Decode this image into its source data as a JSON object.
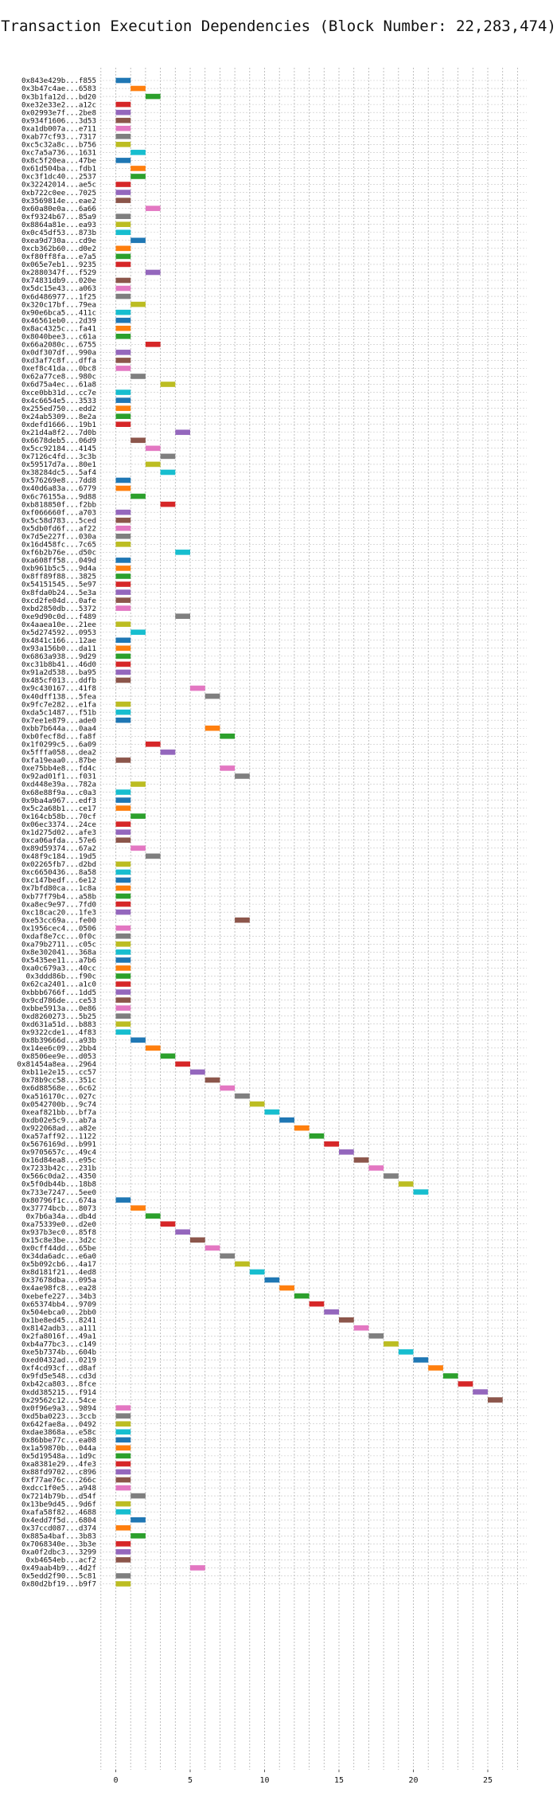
{
  "chart_data": {
    "type": "gantt",
    "title": "Transaction Execution Dependencies (Block Number: 22,283,474)",
    "xlabel": "",
    "ylabel": "",
    "xlim": [
      -1,
      27
    ],
    "xticks": [
      0,
      5,
      10,
      15,
      20,
      25
    ],
    "grid": true,
    "bar_duration": 1,
    "palette": [
      "#1f77b4",
      "#ff7f0e",
      "#2ca02c",
      "#d62728",
      "#9467bd",
      "#8c564b",
      "#e377c2",
      "#7f7f7f",
      "#bcbd22",
      "#17becf"
    ],
    "transactions": [
      {
        "label": "0x843e429b...f855",
        "start": 0
      },
      {
        "label": "0x3b47c4ae...6583",
        "start": 1
      },
      {
        "label": "0x3b1fa12d...bd20",
        "start": 2
      },
      {
        "label": "0xe32e33e2...a12c",
        "start": 0
      },
      {
        "label": "0x02993e7f...2be8",
        "start": 0
      },
      {
        "label": "0x934f1606...3d53",
        "start": 0
      },
      {
        "label": "0xa1db007a...e711",
        "start": 0
      },
      {
        "label": "0xab77cf93...7317",
        "start": 0
      },
      {
        "label": "0xc5c32a8c...b756",
        "start": 0
      },
      {
        "label": "0xc7a5a736...1631",
        "start": 1
      },
      {
        "label": "0x8c5f20ea...47be",
        "start": 0
      },
      {
        "label": "0x61d504ba...fdb1",
        "start": 1
      },
      {
        "label": "0xc3f1dc40...2537",
        "start": 1
      },
      {
        "label": "0x32242014...ae5c",
        "start": 0
      },
      {
        "label": "0xb722c0ee...7025",
        "start": 0
      },
      {
        "label": "0x3569814e...eae2",
        "start": 0
      },
      {
        "label": "0x60a80e0a...6a66",
        "start": 2
      },
      {
        "label": "0xf9324b67...85a9",
        "start": 0
      },
      {
        "label": "0x8864a81e...ea93",
        "start": 0
      },
      {
        "label": "0x0c45df53...873b",
        "start": 0
      },
      {
        "label": "0xea9d730a...cd9e",
        "start": 1
      },
      {
        "label": "0xcb362b60...d0e2",
        "start": 0
      },
      {
        "label": "0xf80ff8fa...e7a5",
        "start": 0
      },
      {
        "label": "0x065e7eb1...9235",
        "start": 0
      },
      {
        "label": "0x2880347f...f529",
        "start": 2
      },
      {
        "label": "0x74831db9...020e",
        "start": 0
      },
      {
        "label": "0x5dc15e43...a063",
        "start": 0
      },
      {
        "label": "0x6d486977...1f25",
        "start": 0
      },
      {
        "label": "0x320c17bf...79ea",
        "start": 1
      },
      {
        "label": "0x90e6bca5...411c",
        "start": 0
      },
      {
        "label": "0x46561eb0...2d39",
        "start": 0
      },
      {
        "label": "0x8ac4325c...fa41",
        "start": 0
      },
      {
        "label": "0x8040bee3...c61a",
        "start": 0
      },
      {
        "label": "0x66a2080c...6755",
        "start": 2
      },
      {
        "label": "0x0df307df...990a",
        "start": 0
      },
      {
        "label": "0xd3af7c8f...dffa",
        "start": 0
      },
      {
        "label": "0xef8c41da...0bc8",
        "start": 0
      },
      {
        "label": "0x62a77ce8...980c",
        "start": 1
      },
      {
        "label": "0x6d75a4ec...61a8",
        "start": 3
      },
      {
        "label": "0xce0bb31d...cc7e",
        "start": 0
      },
      {
        "label": "0x4c6654e5...3533",
        "start": 0
      },
      {
        "label": "0x255ed750...edd2",
        "start": 0
      },
      {
        "label": "0x24ab5309...8e2a",
        "start": 0
      },
      {
        "label": "0xdefd1666...19b1",
        "start": 0
      },
      {
        "label": "0x21d4a8f2...7d0b",
        "start": 4
      },
      {
        "label": "0x6678deb5...06d9",
        "start": 1
      },
      {
        "label": "0x5cc92184...4145",
        "start": 2
      },
      {
        "label": "0x7126c4fd...3c3b",
        "start": 3
      },
      {
        "label": "0x59517d7a...80e1",
        "start": 2
      },
      {
        "label": "0x38284dc5...5af4",
        "start": 3
      },
      {
        "label": "0x576269e8...7dd8",
        "start": 0
      },
      {
        "label": "0x40d6a83a...6779",
        "start": 0
      },
      {
        "label": "0x6c76155a...9d88",
        "start": 1
      },
      {
        "label": "0xb818850f...f2bb",
        "start": 3
      },
      {
        "label": "0xf066660f...a703",
        "start": 0
      },
      {
        "label": "0x5c58d783...5ced",
        "start": 0
      },
      {
        "label": "0x5db0fd6f...af22",
        "start": 0
      },
      {
        "label": "0x7d5e227f...030a",
        "start": 0
      },
      {
        "label": "0x16d458fc...7c65",
        "start": 0
      },
      {
        "label": "0xf6b2b76e...d50c",
        "start": 4
      },
      {
        "label": "0xa608ff58...049d",
        "start": 0
      },
      {
        "label": "0xb961b5c5...9d4a",
        "start": 0
      },
      {
        "label": "0x8ff89f88...3825",
        "start": 0
      },
      {
        "label": "0x54151545...5e97",
        "start": 0
      },
      {
        "label": "0x8fda0b24...5e3a",
        "start": 0
      },
      {
        "label": "0xcd2fe04d...0afe",
        "start": 0
      },
      {
        "label": "0xbd2850db...5372",
        "start": 0
      },
      {
        "label": "0xe9d90c0d...f489",
        "start": 4
      },
      {
        "label": "0x4aaea10e...21ee",
        "start": 0
      },
      {
        "label": "0x5d274592...0953",
        "start": 1
      },
      {
        "label": "0x4841c166...12ae",
        "start": 0
      },
      {
        "label": "0x93a156b0...da11",
        "start": 0
      },
      {
        "label": "0x6863a938...9d29",
        "start": 0
      },
      {
        "label": "0xc31b8b41...46d0",
        "start": 0
      },
      {
        "label": "0x91a2d538...ba95",
        "start": 0
      },
      {
        "label": "0x485cf013...ddfb",
        "start": 0
      },
      {
        "label": "0x9c430167...41f8",
        "start": 5
      },
      {
        "label": "0x40dff138...5fea",
        "start": 6
      },
      {
        "label": "0x9fc7e282...e1fa",
        "start": 0
      },
      {
        "label": "0xda5c1487...f51b",
        "start": 0
      },
      {
        "label": "0x7ee1e879...ade0",
        "start": 0
      },
      {
        "label": "0xbb7b644a...0aa4",
        "start": 6
      },
      {
        "label": "0xb0fecf8d...fa8f",
        "start": 7
      },
      {
        "label": "0x1f0299c5...6a09",
        "start": 2
      },
      {
        "label": "0x5fffa058...dea2",
        "start": 3
      },
      {
        "label": "0xfa19eaa0...87be",
        "start": 0
      },
      {
        "label": "0xe75bb4e8...fd4c",
        "start": 7
      },
      {
        "label": "0x92ad01f1...f031",
        "start": 8
      },
      {
        "label": "0xd448e39a...782a",
        "start": 1
      },
      {
        "label": "0x68e88f9a...c0a3",
        "start": 0
      },
      {
        "label": "0x9ba4a967...edf3",
        "start": 0
      },
      {
        "label": "0x5c2a68b1...ce17",
        "start": 0
      },
      {
        "label": "0x164cb58b...70cf",
        "start": 1
      },
      {
        "label": "0x06ec3374...24ce",
        "start": 0
      },
      {
        "label": "0x1d275d02...afe3",
        "start": 0
      },
      {
        "label": "0xca06afda...57e6",
        "start": 0
      },
      {
        "label": "0x89d59374...67a2",
        "start": 1
      },
      {
        "label": "0x48f9c184...19d5",
        "start": 2
      },
      {
        "label": "0x02265fb7...d2bd",
        "start": 0
      },
      {
        "label": "0xc6650436...8a58",
        "start": 0
      },
      {
        "label": "0xc147bedf...6e12",
        "start": 0
      },
      {
        "label": "0x7bfd80ca...1c8a",
        "start": 0
      },
      {
        "label": "0xb77f79b4...a58b",
        "start": 0
      },
      {
        "label": "0xa8ec9e97...7fd0",
        "start": 0
      },
      {
        "label": "0xc18cac20...1fe3",
        "start": 0
      },
      {
        "label": "0xe53cc69a...fe00",
        "start": 8
      },
      {
        "label": "0x1956cec4...0506",
        "start": 0
      },
      {
        "label": "0xdaf8e7cc...0f0c",
        "start": 0
      },
      {
        "label": "0xa79b2711...c05c",
        "start": 0
      },
      {
        "label": "0x8e302041...368a",
        "start": 0
      },
      {
        "label": "0x5435ee11...a7b6",
        "start": 0
      },
      {
        "label": "0xa0c679a3...40cc",
        "start": 0
      },
      {
        "label": "0x3ddd86b...f90c",
        "start": 0
      },
      {
        "label": "0x62ca2401...a1c0",
        "start": 0
      },
      {
        "label": "0xbbb6766f...1dd5",
        "start": 0
      },
      {
        "label": "0x9cd786de...ce53",
        "start": 0
      },
      {
        "label": "0xbbe5913a...0e86",
        "start": 0
      },
      {
        "label": "0xd8260273...5b25",
        "start": 0
      },
      {
        "label": "0xd631a51d...b883",
        "start": 0
      },
      {
        "label": "0x9322cde1...4f83",
        "start": 0
      },
      {
        "label": "0x8b39666d...a93b",
        "start": 1
      },
      {
        "label": "0x14ee6c09...2bb4",
        "start": 2
      },
      {
        "label": "0x8506ee9e...d053",
        "start": 3
      },
      {
        "label": "0x81454a8ea...2964",
        "start": 4
      },
      {
        "label": "0xb11e2e15...cc57",
        "start": 5
      },
      {
        "label": "0x78b9cc58...351c",
        "start": 6
      },
      {
        "label": "0x6d88568e...6c62",
        "start": 7
      },
      {
        "label": "0xa516170c...027c",
        "start": 8
      },
      {
        "label": "0x0542700b...9c74",
        "start": 9
      },
      {
        "label": "0xeaf821bb...bf7a",
        "start": 10
      },
      {
        "label": "0xdb02e5c9...ab7a",
        "start": 11
      },
      {
        "label": "0x922068ad...a82e",
        "start": 12
      },
      {
        "label": "0xa57aff92...1122",
        "start": 13
      },
      {
        "label": "0x5676169d...b991",
        "start": 14
      },
      {
        "label": "0x9705657c...49c4",
        "start": 15
      },
      {
        "label": "0x16d84ea8...e95c",
        "start": 16
      },
      {
        "label": "0x7233b42c...231b",
        "start": 17
      },
      {
        "label": "0x566c0da2...4350",
        "start": 18
      },
      {
        "label": "0x5f0db44b...18b8",
        "start": 19
      },
      {
        "label": "0x733e7247...5ee0",
        "start": 20
      },
      {
        "label": "0x80796f1c...674a",
        "start": 0
      },
      {
        "label": "0x37774bcb...8073",
        "start": 1
      },
      {
        "label": "0x7b6a34a...db4d",
        "start": 2
      },
      {
        "label": "0xa75339e0...d2e0",
        "start": 3
      },
      {
        "label": "0x937b3ec0...85f8",
        "start": 4
      },
      {
        "label": "0x15c8e3be...3d2c",
        "start": 5
      },
      {
        "label": "0x0cff44dd...65be",
        "start": 6
      },
      {
        "label": "0x34da6adc...e6a0",
        "start": 7
      },
      {
        "label": "0x5b092cb6...4a17",
        "start": 8
      },
      {
        "label": "0x8d181f21...4ed8",
        "start": 9
      },
      {
        "label": "0x37678dba...095a",
        "start": 10
      },
      {
        "label": "0x4ae98fc8...ea28",
        "start": 11
      },
      {
        "label": "0xebefe227...34b3",
        "start": 12
      },
      {
        "label": "0x65374bb4...9709",
        "start": 13
      },
      {
        "label": "0x504ebca0...2bb0",
        "start": 14
      },
      {
        "label": "0x1be8ed45...8241",
        "start": 15
      },
      {
        "label": "0x8142adb3...a111",
        "start": 16
      },
      {
        "label": "0x2fa8016f...49a1",
        "start": 17
      },
      {
        "label": "0xb4a77bc3...c149",
        "start": 18
      },
      {
        "label": "0xe5b7374b...604b",
        "start": 19
      },
      {
        "label": "0xed0432ad...0219",
        "start": 20
      },
      {
        "label": "0xf4cd93cf...d8af",
        "start": 21
      },
      {
        "label": "0x9fd5e548...cd3d",
        "start": 22
      },
      {
        "label": "0xb42ca803...8fce",
        "start": 23
      },
      {
        "label": "0xdd385215...f914",
        "start": 24
      },
      {
        "label": "0x29562c12...54ce",
        "start": 25
      },
      {
        "label": "0x0f96e9a3...9894",
        "start": 0
      },
      {
        "label": "0xd5ba0223...3ccb",
        "start": 0
      },
      {
        "label": "0x642fae8a...0492",
        "start": 0
      },
      {
        "label": "0xdae3868a...e58c",
        "start": 0
      },
      {
        "label": "0x86bbe77c...ea08",
        "start": 0
      },
      {
        "label": "0x1a59870b...044a",
        "start": 0
      },
      {
        "label": "0x5d19548a...1d9c",
        "start": 0
      },
      {
        "label": "0xa8381e29...4fe3",
        "start": 0
      },
      {
        "label": "0x88fd9702...c896",
        "start": 0
      },
      {
        "label": "0xf77ae76c...266c",
        "start": 0
      },
      {
        "label": "0xdcc1f0e5...a948",
        "start": 0
      },
      {
        "label": "0x7214b79b...d54f",
        "start": 1
      },
      {
        "label": "0x13be9d45...9d6f",
        "start": 0
      },
      {
        "label": "0xafa58f82...4688",
        "start": 0
      },
      {
        "label": "0x4edd7f5d...6804",
        "start": 1
      },
      {
        "label": "0x37ccd087...d374",
        "start": 0
      },
      {
        "label": "0x885a4baf...3b83",
        "start": 1
      },
      {
        "label": "0x7068340e...3b3e",
        "start": 0
      },
      {
        "label": "0xa0f2dbc3...3299",
        "start": 0
      },
      {
        "label": "0xb4654eb...acf2",
        "start": 0
      },
      {
        "label": "0x49aab4b9...4d2f",
        "start": 5
      },
      {
        "label": "0x5edd2f90...5c81",
        "start": 0
      },
      {
        "label": "0x80d2bf19...b9f7",
        "start": 0
      }
    ]
  }
}
